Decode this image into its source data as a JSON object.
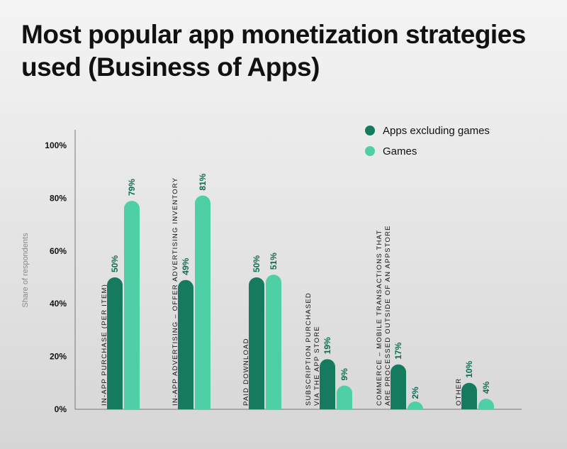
{
  "title": "Most popular app monetization strategies used (Business of Apps)",
  "colors": {
    "apps": "#157a5e",
    "games": "#4ecfa6",
    "label": "#0f6b52"
  },
  "chart_data": {
    "type": "bar",
    "ylabel": "Share of respondents",
    "ylim": [
      0,
      100
    ],
    "yticks": [
      "0%",
      "20%",
      "40%",
      "60%",
      "80%",
      "100%"
    ],
    "legend_position": "top-right",
    "categories": [
      [
        "IN-APP PURCHASE (PER ITEM)"
      ],
      [
        "IN-APP ADVERTISING – OFFER ADVERTISING INVENTORY"
      ],
      [
        "PAID DOWNLOAD"
      ],
      [
        "SUBSCRIPTION PURCHASED",
        "VIA THE APP STORE"
      ],
      [
        "COMMERCE – MOBILE TRANSACTIONS THAT",
        "ARE PROCESSED OUTSIDE OF AN APPSTORE"
      ],
      [
        "OTHER"
      ]
    ],
    "series": [
      {
        "name": "Apps excluding games",
        "values": [
          50,
          49,
          50,
          19,
          17,
          10
        ],
        "labels": [
          "50%",
          "49%",
          "50%",
          "19%",
          "17%",
          "10%"
        ]
      },
      {
        "name": "Games",
        "values": [
          79,
          81,
          51,
          9,
          2,
          4
        ],
        "labels": [
          "79%",
          "81%",
          "51%",
          "9%",
          "2%",
          "4%"
        ]
      }
    ]
  }
}
